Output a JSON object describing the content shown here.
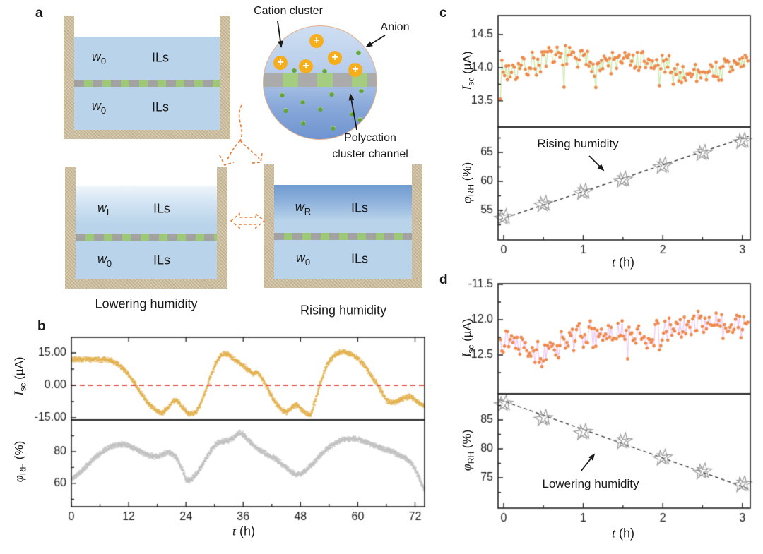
{
  "panel_labels": {
    "a": "a",
    "b": "b",
    "c": "c",
    "d": "d"
  },
  "panel_a": {
    "containers": {
      "top": {
        "w_top": "w",
        "w_top_sub": "0",
        "ils_top": "ILs",
        "w_bot": "w",
        "w_bot_sub": "0",
        "ils_bot": "ILs"
      },
      "left": {
        "w_top": "w",
        "w_top_sub": "L",
        "ils_top": "ILs",
        "w_bot": "w",
        "w_bot_sub": "0",
        "ils_bot": "ILs",
        "caption": "Lowering humidity"
      },
      "right": {
        "w_top": "w",
        "w_top_sub": "R",
        "ils_top": "ILs",
        "w_bot": "w",
        "w_bot_sub": "0",
        "ils_bot": "ILs",
        "caption": "Rising humidity"
      }
    },
    "inset": {
      "label_cation_cluster": "Cation cluster",
      "label_anion": "Anion",
      "label_polycation_1": "Polycation",
      "label_polycation_2": "cluster channel",
      "cation_symbol": "+",
      "cations": [
        [
          75,
          21
        ],
        [
          101,
          45
        ],
        [
          24,
          52
        ],
        [
          60,
          57
        ],
        [
          130,
          62
        ]
      ],
      "anions": [
        [
          43,
          62
        ],
        [
          86,
          63
        ],
        [
          134,
          37
        ],
        [
          26,
          97
        ],
        [
          55,
          107
        ],
        [
          96,
          96
        ],
        [
          138,
          91
        ],
        [
          31,
          119
        ],
        [
          80,
          117
        ],
        [
          125,
          124
        ],
        [
          56,
          137
        ],
        [
          98,
          144
        ],
        [
          136,
          132
        ]
      ]
    },
    "colors": {
      "wall": "#dbcfb4",
      "liquid": "#b9d4ea",
      "membrane_gray": "#a2a2a2",
      "membrane_green": "#9dc878",
      "cation": "#f6ae1c",
      "anion": "#63a33c",
      "arrow_orange": "#e8813d"
    }
  },
  "axis_labels": {
    "isc_sym": "I",
    "isc_sub": "sc",
    "isc_unit": " (µA)",
    "rh_sym": "φ",
    "rh_sub": "RH",
    "rh_unit": " (%)",
    "t_sym": "t",
    "t_unit": " (h)"
  },
  "annotations": {
    "rising": "Rising humidity",
    "lowering": "Lowering humidity"
  },
  "chart_data": [
    {
      "id": "b_isc",
      "type": "dense_scatter",
      "t_start": 0,
      "t_step": 1,
      "values": [
        12.2,
        12.4,
        12.3,
        12.5,
        12.2,
        12.4,
        12.1,
        12.3,
        11.8,
        10.8,
        9.4,
        7.4,
        4.8,
        1.8,
        -2.0,
        -5.0,
        -8.0,
        -10.2,
        -11.8,
        -12.4,
        -10.4,
        -7.4,
        -6.8,
        -9.4,
        -12.2,
        -13.0,
        -12.2,
        -8.2,
        -2.2,
        4.2,
        9.8,
        13.6,
        15.2,
        14.2,
        12.2,
        11.0,
        9.2,
        7.2,
        5.8,
        6.2,
        3.0,
        -1.2,
        -5.4,
        -8.8,
        -11.2,
        -12.0,
        -10.0,
        -8.6,
        -10.4,
        -12.8,
        -13.6,
        -6.8,
        1.0,
        7.4,
        11.8,
        14.2,
        15.6,
        15.8,
        15.2,
        14.2,
        12.6,
        10.2,
        7.2,
        3.6,
        0.6,
        -3.4,
        -6.6,
        -7.8,
        -7.2,
        -6.2,
        -5.2,
        -4.8,
        -6.6,
        -8.4,
        -9.4
      ],
      "xlim": [
        0,
        74
      ],
      "ylim": [
        -15.98,
        22.17
      ],
      "yticks": [
        {
          "v": 15,
          "t": "15.00"
        },
        {
          "v": 0,
          "t": "0.00"
        },
        {
          "v": -15,
          "t": "-15.00"
        }
      ],
      "yminor": [
        7.5,
        -7.5
      ],
      "top_xticks": [
        12,
        24,
        36,
        48,
        60,
        72
      ],
      "color": "#e3b04c",
      "jitter": 0.9,
      "jitter_x": 0.18,
      "density": 4,
      "seed": 11,
      "refline": {
        "y": 0,
        "color": "#ea5050"
      }
    },
    {
      "id": "b_rh",
      "type": "dense_scatter",
      "t_start": 0,
      "t_step": 1,
      "values": [
        63,
        65.5,
        68,
        71,
        74,
        77,
        79.5,
        81.5,
        83.5,
        84.5,
        85,
        85,
        84,
        82.5,
        81,
        79.5,
        78,
        77.5,
        77,
        78.5,
        80,
        79,
        76,
        70,
        62,
        63,
        66,
        70.5,
        75.5,
        80.5,
        84.5,
        86.5,
        87,
        87.5,
        89.5,
        92.5,
        91,
        87.5,
        84.5,
        82,
        80,
        78.5,
        77,
        75,
        72.5,
        70,
        67.5,
        66,
        66.5,
        68.5,
        71.5,
        74.5,
        78,
        81,
        83.5,
        85.5,
        87,
        88,
        88.5,
        88.5,
        88,
        87,
        86,
        84.5,
        83.5,
        82.5,
        81.5,
        80.5,
        79,
        77.5,
        76,
        73.5,
        69,
        62,
        55
      ],
      "xlim": [
        0,
        74
      ],
      "ylim": [
        45.3,
        100.0
      ],
      "yticks": [
        {
          "v": 80,
          "t": "80"
        },
        {
          "v": 60,
          "t": "60"
        }
      ],
      "yminor": [
        90,
        70,
        50
      ],
      "xticks": [
        {
          "v": 0,
          "t": "0"
        },
        {
          "v": 12,
          "t": "12"
        },
        {
          "v": 24,
          "t": "24"
        },
        {
          "v": 36,
          "t": "36"
        },
        {
          "v": 48,
          "t": "48"
        },
        {
          "v": 60,
          "t": "60"
        },
        {
          "v": 72,
          "t": "72"
        }
      ],
      "xminor": [
        6,
        18,
        30,
        42,
        54,
        66
      ],
      "xlabel": "t (h)",
      "color": "#c2c2c2",
      "jitter": 1.25,
      "jitter_x": 0.18,
      "density": 5,
      "seed": 23
    },
    {
      "id": "c_isc",
      "type": "noisy_line",
      "t_start": 0,
      "t_step": 0.25,
      "trend": [
        13.95,
        14.0,
        14.1,
        14.15,
        14.1,
        14.05,
        14.1,
        14.05,
        14.0,
        13.9,
        13.95,
        13.95,
        14.1
      ],
      "n": 180,
      "noise": 0.24,
      "seed": 7,
      "data_xrange": [
        -0.04,
        3.07
      ],
      "xlim": [
        -0.07,
        3.1
      ],
      "ylim": [
        13.106,
        14.787
      ],
      "yticks": [
        {
          "v": 14.5,
          "t": "14.5"
        },
        {
          "v": 14.0,
          "t": "14.0"
        },
        {
          "v": 13.5,
          "t": "13.5"
        }
      ],
      "yminor": [
        14.25,
        13.75
      ],
      "dot_color": "#ef8a4d",
      "line_color": "#cde9ab"
    },
    {
      "id": "c_rh",
      "type": "stars",
      "t": [
        0,
        0.5,
        1,
        1.5,
        2,
        2.5,
        3
      ],
      "values": [
        53.8,
        56.1,
        58.2,
        60.3,
        62.7,
        64.9,
        67.0
      ],
      "fit": [
        [
          -0.05,
          53.4
        ],
        [
          3.08,
          67.8
        ]
      ],
      "xlim": [
        -0.07,
        3.1
      ],
      "ylim": [
        49.88,
        69.39
      ],
      "yticks": [
        {
          "v": 65,
          "t": "65"
        },
        {
          "v": 60,
          "t": "60"
        },
        {
          "v": 55,
          "t": "55"
        }
      ],
      "yminor": [
        67.5,
        62.5,
        57.5,
        52.5
      ],
      "xticks": [
        {
          "v": 0,
          "t": "0"
        },
        {
          "v": 1,
          "t": "1"
        },
        {
          "v": 2,
          "t": "2"
        },
        {
          "v": 3,
          "t": "3"
        }
      ],
      "xminor": [
        0.5,
        1.5,
        2.5
      ],
      "xlabel": "t (h)",
      "annotation": "Rising humidity",
      "star_color": "#9a9a9a",
      "fit_color": "#3a3a3a"
    },
    {
      "id": "d_isc",
      "type": "noisy_line",
      "t_start": 0,
      "t_step": 0.25,
      "trend": [
        -12.25,
        -12.3,
        -12.55,
        -12.3,
        -12.2,
        -12.25,
        -12.2,
        -12.25,
        -12.2,
        -12.1,
        -12.0,
        -12.1,
        -12.05
      ],
      "n": 180,
      "noise": 0.22,
      "seed": 13,
      "data_xrange": [
        -0.04,
        3.07
      ],
      "xlim": [
        -0.07,
        3.1
      ],
      "ylim": [
        -13.05,
        -11.49
      ],
      "yticks": [
        {
          "v": -11.5,
          "t": "-11.5"
        },
        {
          "v": -12.0,
          "t": "-12.0"
        },
        {
          "v": -12.5,
          "t": "-12.5"
        }
      ],
      "yminor": [
        -11.75,
        -12.25,
        -12.75
      ],
      "dot_color": "#ef8a4d",
      "line_color": "#eecdf5"
    },
    {
      "id": "d_rh",
      "type": "stars",
      "t": [
        0,
        0.5,
        1,
        1.5,
        2,
        2.5,
        3
      ],
      "values": [
        87.8,
        85.3,
        82.9,
        81.3,
        78.5,
        76.1,
        73.9
      ],
      "fit": [
        [
          -0.05,
          88.5
        ],
        [
          3.08,
          73.1
        ]
      ],
      "xlim": [
        -0.07,
        3.1
      ],
      "ylim": [
        69.76,
        89.51
      ],
      "yticks": [
        {
          "v": 85,
          "t": "85"
        },
        {
          "v": 80,
          "t": "80"
        },
        {
          "v": 75,
          "t": "75"
        }
      ],
      "yminor": [
        87.5,
        82.5,
        77.5,
        72.5
      ],
      "xticks": [
        {
          "v": 0,
          "t": "0"
        },
        {
          "v": 1,
          "t": "1"
        },
        {
          "v": 2,
          "t": "2"
        },
        {
          "v": 3,
          "t": "3"
        }
      ],
      "xminor": [
        0.5,
        1.5,
        2.5
      ],
      "xlabel": "t (h)",
      "annotation": "Lowering humidity",
      "star_color": "#9a9a9a",
      "fit_color": "#3a3a3a"
    }
  ]
}
